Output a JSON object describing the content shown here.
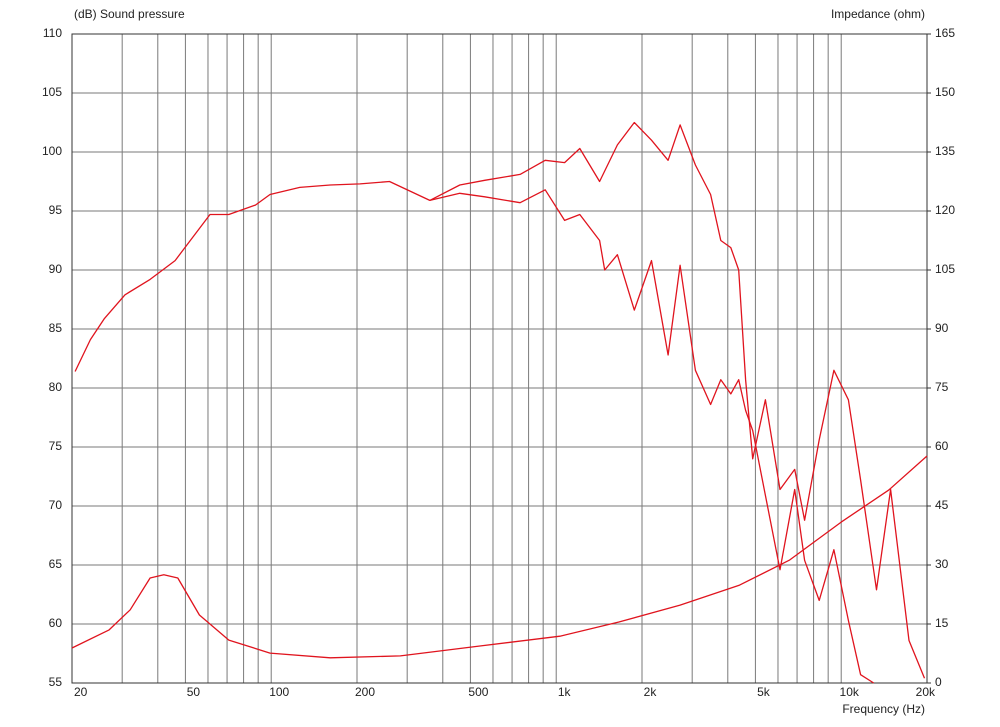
{
  "chart_data": {
    "type": "line",
    "ylabel": "(dB)  Sound pressure",
    "y2label": "Impedance  (ohm)",
    "xlabel": "Frequency  (Hz)",
    "xscale": "log",
    "grid": true,
    "xlim": [
      20,
      20000
    ],
    "ylim": [
      55,
      110
    ],
    "y2lim": [
      0,
      165
    ],
    "xticks": [
      20,
      50,
      100,
      200,
      500,
      {
        "value": 1000,
        "label": "1k"
      },
      {
        "value": 2000,
        "label": "2k"
      },
      {
        "value": 5000,
        "label": "5k"
      },
      {
        "value": 10000,
        "label": "10k"
      },
      {
        "value": 20000,
        "label": "20k"
      }
    ],
    "xminor": [
      30,
      40,
      60,
      70,
      80,
      90,
      300,
      400,
      600,
      700,
      800,
      900,
      3000,
      4000,
      6000,
      7000,
      8000,
      9000
    ],
    "yticks": [
      55,
      60,
      65,
      70,
      75,
      80,
      85,
      90,
      95,
      100,
      105,
      110
    ],
    "y2ticks": [
      0,
      15,
      30,
      45,
      60,
      75,
      90,
      105,
      120,
      135,
      150,
      165
    ],
    "series": [
      {
        "color": "#e0141e",
        "x": [
          20.5,
          23.2,
          26,
          30.7,
          37.6,
          46,
          52,
          61,
          71,
          88,
          99,
          126,
          161,
          205,
          260,
          360,
          459,
          561,
          747,
          915,
          1070,
          1210,
          1420,
          1640,
          1880,
          2160,
          2470,
          2720,
          3080,
          3480,
          3780,
          4100,
          4370,
          4620,
          4890,
          5420,
          6100,
          6870,
          7440,
          8370,
          9430,
          10600,
          11700,
          13300,
          14900,
          17300,
          19600
        ],
        "values": [
          81.4,
          84.1,
          85.9,
          87.9,
          89.2,
          90.8,
          92.5,
          94.7,
          94.7,
          95.5,
          96.4,
          97.0,
          97.2,
          97.3,
          97.5,
          95.9,
          97.2,
          97.6,
          98.1,
          99.3,
          99.1,
          100.3,
          97.5,
          100.6,
          102.5,
          101.0,
          99.3,
          102.3,
          98.9,
          96.4,
          92.5,
          91.9,
          90.0,
          80.7,
          74.0,
          79.0,
          71.4,
          73.1,
          68.8,
          75.6,
          81.5,
          79.0,
          72.2,
          62.9,
          71.4,
          58.6,
          55.4
        ]
      },
      {
        "color": "#e0141e",
        "x": [
          360,
          459,
          561,
          747,
          915,
          1070,
          1210,
          1420,
          1480,
          1640,
          1880,
          2160,
          2470,
          2720,
          3080,
          3480,
          3780,
          4100,
          4370,
          4620,
          4890,
          5420,
          6100,
          6870,
          7440,
          8370,
          9430,
          10600,
          11700,
          13000
        ],
        "values": [
          95.9,
          96.5,
          96.2,
          95.7,
          96.8,
          94.2,
          94.7,
          92.5,
          90.0,
          91.3,
          86.6,
          90.8,
          82.8,
          90.4,
          81.5,
          78.6,
          80.7,
          79.5,
          80.7,
          78.1,
          76.4,
          70.9,
          64.6,
          71.4,
          65.4,
          62.0,
          66.3,
          60.3,
          55.7,
          55.0
        ]
      },
      {
        "color": "#e0141e",
        "axis": "y2",
        "x": [
          20,
          27,
          32,
          37.6,
          42,
          47,
          56,
          71,
          99,
          161,
          284,
          540,
          1030,
          1660,
          2720,
          4400,
          6600,
          10000,
          14700,
          20000
        ],
        "values": [
          8.9,
          13.5,
          18.6,
          26.7,
          27.5,
          26.7,
          17.3,
          10.9,
          7.6,
          6.4,
          6.9,
          9.4,
          11.9,
          15.5,
          19.8,
          24.9,
          31.3,
          40.9,
          49.1,
          57.7
        ]
      }
    ]
  }
}
